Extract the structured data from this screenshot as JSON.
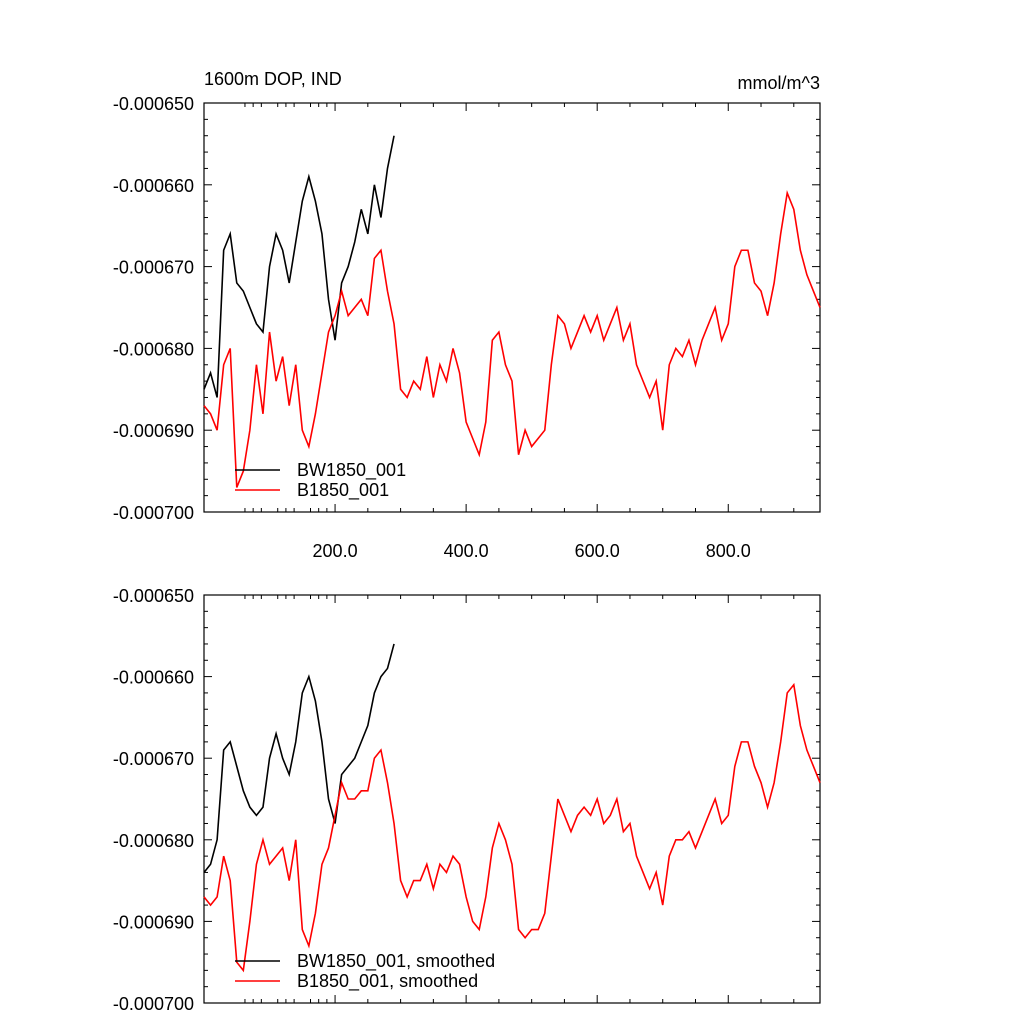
{
  "chart_data": [
    {
      "type": "line",
      "title": "1600m DOP, IND",
      "units_label": "mmol/m^3",
      "xlim": [
        0,
        940
      ],
      "ylim": [
        -0.0007,
        -0.00065
      ],
      "xticks": [
        {
          "value": 200,
          "label": "200.0"
        },
        {
          "value": 400,
          "label": "400.0"
        },
        {
          "value": 600,
          "label": "600.0"
        },
        {
          "value": 800,
          "label": "800.0"
        }
      ],
      "yticks": [
        {
          "value": -0.0007,
          "label": "-0.000700"
        },
        {
          "value": -0.00069,
          "label": "-0.000690"
        },
        {
          "value": -0.00068,
          "label": "-0.000680"
        },
        {
          "value": -0.00067,
          "label": "-0.000670"
        },
        {
          "value": -0.00066,
          "label": "-0.000660"
        },
        {
          "value": -0.00065,
          "label": "-0.000650"
        }
      ],
      "show_xtick_labels": true,
      "legend": "lower left",
      "x": [
        0,
        10,
        20,
        30,
        40,
        50,
        60,
        70,
        80,
        90,
        100,
        110,
        120,
        130,
        140,
        150,
        160,
        170,
        180,
        190,
        200,
        210,
        220,
        230,
        240,
        250,
        260,
        270,
        280,
        290,
        300,
        310,
        320,
        330,
        340,
        350,
        360,
        370,
        380,
        390,
        400,
        410,
        420,
        430,
        440,
        450,
        460,
        470,
        480,
        490,
        500,
        510,
        520,
        530,
        540,
        550,
        560,
        570,
        580,
        590,
        600,
        610,
        620,
        630,
        640,
        650,
        660,
        670,
        680,
        690,
        700,
        710,
        720,
        730,
        740,
        750,
        760,
        770,
        780,
        790,
        800,
        810,
        820,
        830,
        840,
        850,
        860,
        870,
        880,
        890,
        900,
        910,
        920,
        930,
        940
      ],
      "series": [
        {
          "name": "BW1850_001",
          "color": "#000000",
          "values": [
            -0.000685,
            -0.000683,
            -0.000686,
            -0.000668,
            -0.000666,
            -0.000672,
            -0.000673,
            -0.000675,
            -0.000677,
            -0.000678,
            -0.00067,
            -0.000666,
            -0.000668,
            -0.000672,
            -0.000667,
            -0.000662,
            -0.000659,
            -0.000662,
            -0.000666,
            -0.000674,
            -0.000679,
            -0.000672,
            -0.00067,
            -0.000667,
            -0.000663,
            -0.000666,
            -0.00066,
            -0.000664,
            -0.000658,
            -0.000654,
            null,
            null,
            null,
            null,
            null,
            null,
            null,
            null,
            null,
            null,
            null,
            null,
            null,
            null,
            null,
            null,
            null,
            null,
            null,
            null,
            null,
            null,
            null,
            null,
            null,
            null,
            null,
            null,
            null,
            null,
            null,
            null,
            null,
            null,
            null,
            null,
            null,
            null,
            null,
            null,
            null,
            null,
            null,
            null,
            null,
            null,
            null,
            null,
            null,
            null,
            null,
            null,
            null,
            null,
            null,
            null,
            null,
            null,
            null,
            null,
            null,
            null,
            null,
            null,
            null
          ]
        },
        {
          "name": "B1850_001",
          "color": "#ff0000",
          "values": [
            -0.000687,
            -0.000688,
            -0.00069,
            -0.000682,
            -0.00068,
            -0.000697,
            -0.000695,
            -0.00069,
            -0.000682,
            -0.000688,
            -0.000678,
            -0.000684,
            -0.000681,
            -0.000687,
            -0.000682,
            -0.00069,
            -0.000692,
            -0.000688,
            -0.000683,
            -0.000678,
            -0.000676,
            -0.000673,
            -0.000676,
            -0.000675,
            -0.000674,
            -0.000676,
            -0.000669,
            -0.000668,
            -0.000673,
            -0.000677,
            -0.000685,
            -0.000686,
            -0.000684,
            -0.000685,
            -0.000681,
            -0.000686,
            -0.000682,
            -0.000684,
            -0.00068,
            -0.000683,
            -0.000689,
            -0.000691,
            -0.000693,
            -0.000689,
            -0.000679,
            -0.000678,
            -0.000682,
            -0.000684,
            -0.000693,
            -0.00069,
            -0.000692,
            -0.000691,
            -0.00069,
            -0.000682,
            -0.000676,
            -0.000677,
            -0.00068,
            -0.000678,
            -0.000676,
            -0.000678,
            -0.000676,
            -0.000679,
            -0.000677,
            -0.000675,
            -0.000679,
            -0.000677,
            -0.000682,
            -0.000684,
            -0.000686,
            -0.000684,
            -0.00069,
            -0.000682,
            -0.00068,
            -0.000681,
            -0.000679,
            -0.000682,
            -0.000679,
            -0.000677,
            -0.000675,
            -0.000679,
            -0.000677,
            -0.00067,
            -0.000668,
            -0.000668,
            -0.000672,
            -0.000673,
            -0.000676,
            -0.000672,
            -0.000666,
            -0.000661,
            -0.000663,
            -0.000668,
            -0.000671,
            -0.000673,
            -0.000675
          ]
        }
      ]
    },
    {
      "type": "line",
      "xlim": [
        0,
        940
      ],
      "ylim": [
        -0.0007,
        -0.00065
      ],
      "xticks": [
        200,
        400,
        600,
        800
      ],
      "yticks": [
        {
          "value": -0.0007,
          "label": "-0.000700"
        },
        {
          "value": -0.00069,
          "label": "-0.000690"
        },
        {
          "value": -0.00068,
          "label": "-0.000680"
        },
        {
          "value": -0.00067,
          "label": "-0.000670"
        },
        {
          "value": -0.00066,
          "label": "-0.000660"
        },
        {
          "value": -0.00065,
          "label": "-0.000650"
        }
      ],
      "show_xtick_labels": false,
      "legend": "lower left",
      "x": [
        0,
        10,
        20,
        30,
        40,
        50,
        60,
        70,
        80,
        90,
        100,
        110,
        120,
        130,
        140,
        150,
        160,
        170,
        180,
        190,
        200,
        210,
        220,
        230,
        240,
        250,
        260,
        270,
        280,
        290,
        300,
        310,
        320,
        330,
        340,
        350,
        360,
        370,
        380,
        390,
        400,
        410,
        420,
        430,
        440,
        450,
        460,
        470,
        480,
        490,
        500,
        510,
        520,
        530,
        540,
        550,
        560,
        570,
        580,
        590,
        600,
        610,
        620,
        630,
        640,
        650,
        660,
        670,
        680,
        690,
        700,
        710,
        720,
        730,
        740,
        750,
        760,
        770,
        780,
        790,
        800,
        810,
        820,
        830,
        840,
        850,
        860,
        870,
        880,
        890,
        900,
        910,
        920,
        930,
        940
      ],
      "series": [
        {
          "name": "BW1850_001, smoothed",
          "color": "#000000",
          "values": [
            -0.000684,
            -0.000683,
            -0.00068,
            -0.000669,
            -0.000668,
            -0.000671,
            -0.000674,
            -0.000676,
            -0.000677,
            -0.000676,
            -0.00067,
            -0.000667,
            -0.00067,
            -0.000672,
            -0.000668,
            -0.000662,
            -0.00066,
            -0.000663,
            -0.000668,
            -0.000675,
            -0.000678,
            -0.000672,
            -0.000671,
            -0.00067,
            -0.000668,
            -0.000666,
            -0.000662,
            -0.00066,
            -0.000659,
            -0.000656,
            null,
            null,
            null,
            null,
            null,
            null,
            null,
            null,
            null,
            null,
            null,
            null,
            null,
            null,
            null,
            null,
            null,
            null,
            null,
            null,
            null,
            null,
            null,
            null,
            null,
            null,
            null,
            null,
            null,
            null,
            null,
            null,
            null,
            null,
            null,
            null,
            null,
            null,
            null,
            null,
            null,
            null,
            null,
            null,
            null,
            null,
            null,
            null,
            null,
            null,
            null,
            null,
            null,
            null,
            null,
            null,
            null,
            null,
            null,
            null,
            null,
            null,
            null,
            null,
            null
          ]
        },
        {
          "name": "B1850_001, smoothed",
          "color": "#ff0000",
          "values": [
            -0.000687,
            -0.000688,
            -0.000687,
            -0.000682,
            -0.000685,
            -0.000695,
            -0.000696,
            -0.00069,
            -0.000683,
            -0.00068,
            -0.000683,
            -0.000682,
            -0.000681,
            -0.000685,
            -0.00068,
            -0.000691,
            -0.000693,
            -0.000689,
            -0.000683,
            -0.000681,
            -0.000677,
            -0.000673,
            -0.000675,
            -0.000675,
            -0.000674,
            -0.000674,
            -0.00067,
            -0.000669,
            -0.000673,
            -0.000678,
            -0.000685,
            -0.000687,
            -0.000685,
            -0.000685,
            -0.000683,
            -0.000686,
            -0.000683,
            -0.000684,
            -0.000682,
            -0.000683,
            -0.000687,
            -0.00069,
            -0.000691,
            -0.000687,
            -0.000681,
            -0.000678,
            -0.00068,
            -0.000683,
            -0.000691,
            -0.000692,
            -0.000691,
            -0.000691,
            -0.000689,
            -0.000682,
            -0.000675,
            -0.000677,
            -0.000679,
            -0.000677,
            -0.000676,
            -0.000677,
            -0.000675,
            -0.000678,
            -0.000677,
            -0.000675,
            -0.000679,
            -0.000678,
            -0.000682,
            -0.000684,
            -0.000686,
            -0.000684,
            -0.000688,
            -0.000682,
            -0.00068,
            -0.00068,
            -0.000679,
            -0.000681,
            -0.000679,
            -0.000677,
            -0.000675,
            -0.000678,
            -0.000677,
            -0.000671,
            -0.000668,
            -0.000668,
            -0.000671,
            -0.000673,
            -0.000676,
            -0.000673,
            -0.000668,
            -0.000662,
            -0.000661,
            -0.000666,
            -0.000669,
            -0.000671,
            -0.000673
          ]
        }
      ]
    }
  ]
}
